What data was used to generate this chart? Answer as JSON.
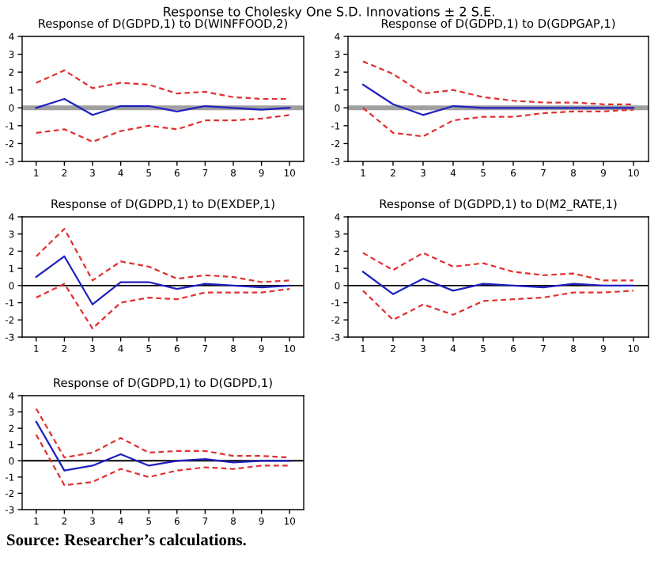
{
  "chart_data": [
    {
      "type": "line",
      "title": "Response of D(GDPD,1) to D(WINFFOOD,2)",
      "annotations": [
        "Response to Cholesky One S.D. Innovations ± 2 S.E."
      ],
      "categories": [
        "1",
        "2",
        "3",
        "4",
        "5",
        "6",
        "7",
        "8",
        "9",
        "10"
      ],
      "ylim": [
        -3,
        4
      ],
      "yticks": [
        -3,
        -2,
        -1,
        0,
        1,
        2,
        3,
        4
      ],
      "grid": false,
      "legend": false,
      "ref_lines": [
        {
          "axis": "y",
          "value": 0,
          "color": "#a0a0a0"
        }
      ],
      "series": [
        {
          "color": "#2020c0",
          "line_style": "solid",
          "values": [
            0,
            0.5,
            -0.4,
            0.1,
            0.1,
            -0.2,
            0.1,
            0,
            -0.1,
            0
          ]
        },
        {
          "color": "#e03030",
          "line_style": "dashed",
          "values": [
            1.4,
            2.1,
            1.1,
            1.4,
            1.3,
            0.8,
            0.9,
            0.6,
            0.5,
            0.5
          ]
        },
        {
          "color": "#e03030",
          "line_style": "dashed",
          "values": [
            -1.4,
            -1.2,
            -1.9,
            -1.3,
            -1.0,
            -1.2,
            -0.7,
            -0.7,
            -0.6,
            -0.4
          ]
        }
      ]
    },
    {
      "type": "line",
      "title": "Response of D(GDPD,1) to D(GDPGAP,1)",
      "categories": [
        "1",
        "2",
        "3",
        "4",
        "5",
        "6",
        "7",
        "8",
        "9",
        "10"
      ],
      "ylim": [
        -3,
        4
      ],
      "yticks": [
        -3,
        -2,
        -1,
        0,
        1,
        2,
        3,
        4
      ],
      "grid": false,
      "legend": false,
      "ref_lines": [
        {
          "axis": "y",
          "value": 0,
          "color": "#a0a0a0"
        }
      ],
      "series": [
        {
          "color": "#2020c0",
          "line_style": "solid",
          "values": [
            1.3,
            0.2,
            -0.4,
            0.1,
            0.0,
            0.0,
            0.0,
            0.0,
            0.0,
            0.0
          ]
        },
        {
          "color": "#e03030",
          "line_style": "dashed",
          "values": [
            2.6,
            1.9,
            0.8,
            1.0,
            0.6,
            0.4,
            0.3,
            0.3,
            0.2,
            0.2
          ]
        },
        {
          "color": "#e03030",
          "line_style": "dashed",
          "values": [
            0.0,
            -1.4,
            -1.6,
            -0.7,
            -0.5,
            -0.5,
            -0.3,
            -0.2,
            -0.2,
            -0.1
          ]
        }
      ]
    },
    {
      "type": "line",
      "title": "Response of D(GDPD,1) to D(EXDEP,1)",
      "categories": [
        "1",
        "2",
        "3",
        "4",
        "5",
        "6",
        "7",
        "8",
        "9",
        "10"
      ],
      "ylim": [
        -3,
        4
      ],
      "yticks": [
        -3,
        -2,
        -1,
        0,
        1,
        2,
        3,
        4
      ],
      "grid": false,
      "legend": false,
      "ref_lines": [
        {
          "axis": "y",
          "value": 0,
          "color": "#000000"
        }
      ],
      "series": [
        {
          "color": "#2020c0",
          "line_style": "solid",
          "values": [
            0.5,
            1.7,
            -1.1,
            0.2,
            0.2,
            -0.2,
            0.1,
            0.0,
            -0.1,
            0.0
          ]
        },
        {
          "color": "#e03030",
          "line_style": "dashed",
          "values": [
            1.7,
            3.3,
            0.3,
            1.4,
            1.1,
            0.4,
            0.6,
            0.5,
            0.2,
            0.3
          ]
        },
        {
          "color": "#e03030",
          "line_style": "dashed",
          "values": [
            -0.7,
            0.1,
            -2.5,
            -1.0,
            -0.7,
            -0.8,
            -0.4,
            -0.4,
            -0.4,
            -0.2
          ]
        }
      ]
    },
    {
      "type": "line",
      "title": "Response of D(GDPD,1) to D(M2_RATE,1)",
      "categories": [
        "1",
        "2",
        "3",
        "4",
        "5",
        "6",
        "7",
        "8",
        "9",
        "10"
      ],
      "ylim": [
        -3,
        4
      ],
      "yticks": [
        -3,
        -2,
        -1,
        0,
        1,
        2,
        3,
        4
      ],
      "grid": false,
      "legend": false,
      "ref_lines": [
        {
          "axis": "y",
          "value": 0,
          "color": "#000000"
        }
      ],
      "series": [
        {
          "color": "#2020c0",
          "line_style": "solid",
          "values": [
            0.8,
            -0.5,
            0.4,
            -0.3,
            0.1,
            0.0,
            -0.1,
            0.1,
            0.0,
            0.0
          ]
        },
        {
          "color": "#e03030",
          "line_style": "dashed",
          "values": [
            1.9,
            0.9,
            1.9,
            1.1,
            1.3,
            0.8,
            0.6,
            0.7,
            0.3,
            0.3
          ]
        },
        {
          "color": "#e03030",
          "line_style": "dashed",
          "values": [
            -0.3,
            -2.0,
            -1.1,
            -1.7,
            -0.9,
            -0.8,
            -0.7,
            -0.4,
            -0.4,
            -0.3
          ]
        }
      ]
    },
    {
      "type": "line",
      "title": "Response of D(GDPD,1) to D(GDPD,1)",
      "annotations": [
        "Source: Researcher’s calculations."
      ],
      "categories": [
        "1",
        "2",
        "3",
        "4",
        "5",
        "6",
        "7",
        "8",
        "9",
        "10"
      ],
      "ylim": [
        -3,
        4
      ],
      "yticks": [
        -3,
        -2,
        -1,
        0,
        1,
        2,
        3,
        4
      ],
      "grid": false,
      "legend": false,
      "ref_lines": [
        {
          "axis": "y",
          "value": 0,
          "color": "#000000"
        }
      ],
      "series": [
        {
          "color": "#2020c0",
          "line_style": "solid",
          "values": [
            2.4,
            -0.6,
            -0.3,
            0.4,
            -0.3,
            0.0,
            0.1,
            -0.1,
            0.0,
            0.0
          ]
        },
        {
          "color": "#e03030",
          "line_style": "dashed",
          "values": [
            3.2,
            0.2,
            0.5,
            1.4,
            0.5,
            0.6,
            0.6,
            0.3,
            0.3,
            0.2
          ]
        },
        {
          "color": "#e03030",
          "line_style": "dashed",
          "values": [
            1.6,
            -1.5,
            -1.3,
            -0.5,
            -1.0,
            -0.6,
            -0.4,
            -0.5,
            -0.3,
            -0.3
          ]
        }
      ]
    }
  ]
}
